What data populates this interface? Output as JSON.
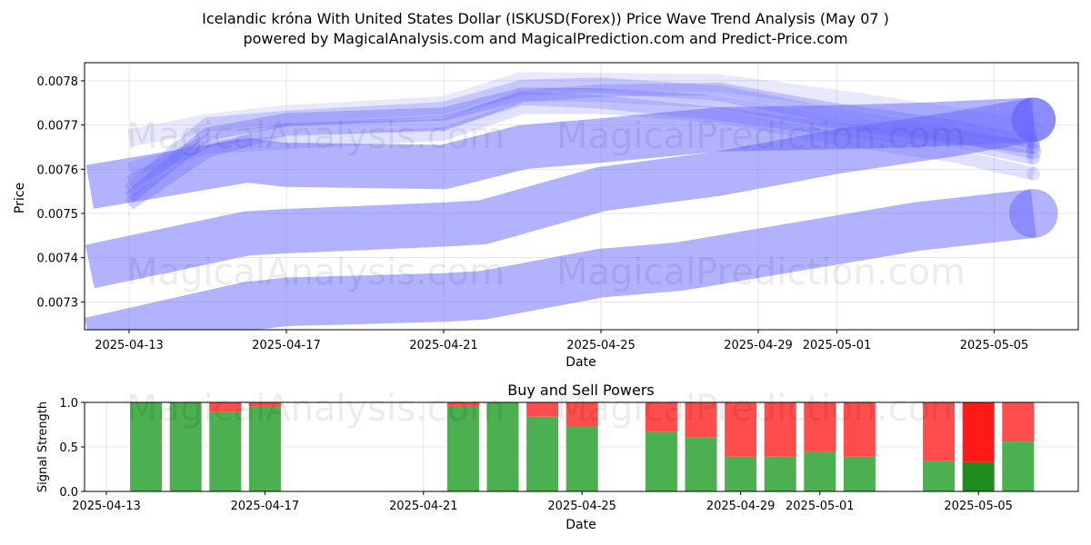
{
  "title_line1": "Icelandic króna With United States Dollar (ISKUSD(Forex)) Price Wave Trend Analysis (May 07 )",
  "title_line2": "powered by MagicalAnalysis.com and MagicalPrediction.com and Predict-Price.com",
  "watermarks": [
    "MagicalAnalysis.com",
    "MagicalPrediction.com"
  ],
  "colors": {
    "band": "#6666ff",
    "buy": "#4caf50",
    "sell": "#ff4d4d",
    "buy_dark": "#1e8c1e",
    "sell_bright": "#ff1a1a"
  },
  "chart_data": [
    {
      "type": "area",
      "name": "price-wave",
      "xlabel": "Date",
      "ylabel": "Price",
      "ylim": [
        0.007237,
        0.007841
      ],
      "grid": true,
      "x_ticks": [
        "2025-04-13",
        "2025-04-17",
        "2025-04-21",
        "2025-04-25",
        "2025-04-29",
        "2025-05-01",
        "2025-05-05"
      ],
      "y_ticks": [
        "0.0073",
        "0.0074",
        "0.0075",
        "0.0076",
        "0.0077",
        "0.0078"
      ],
      "series": [
        {
          "points": [
            [
              "2025-04-13",
              0.007535
            ],
            [
              "2025-04-15",
              0.00768
            ],
            [
              "2025-04-17",
              0.007712
            ],
            [
              "2025-04-21",
              0.007725
            ],
            [
              "2025-04-23",
              0.00777
            ],
            [
              "2025-04-25",
              0.007768
            ],
            [
              "2025-04-28",
              0.007752
            ],
            [
              "2025-05-01",
              0.007705
            ],
            [
              "2025-05-04",
              0.007672
            ],
            [
              "2025-05-06",
              0.00765
            ]
          ],
          "width": 3e-05,
          "opacity": 0.35
        },
        {
          "points": [
            [
              "2025-04-13",
              0.00755
            ],
            [
              "2025-04-15",
              0.0077
            ],
            [
              "2025-04-17",
              0.007715
            ],
            [
              "2025-04-21",
              0.007735
            ],
            [
              "2025-04-23",
              0.007785
            ],
            [
              "2025-04-25",
              0.00779
            ],
            [
              "2025-04-28",
              0.007772
            ],
            [
              "2025-05-01",
              0.00772
            ],
            [
              "2025-05-04",
              0.00768
            ],
            [
              "2025-05-06",
              0.00764
            ]
          ],
          "width": 3.5e-05,
          "opacity": 0.25
        },
        {
          "points": [
            [
              "2025-04-13",
              0.00757
            ],
            [
              "2025-04-15",
              0.007665
            ],
            [
              "2025-04-17",
              0.00769
            ],
            [
              "2025-04-21",
              0.007705
            ],
            [
              "2025-04-23",
              0.00776
            ],
            [
              "2025-04-25",
              0.007752
            ],
            [
              "2025-04-28",
              0.007725
            ],
            [
              "2025-05-01",
              0.00769
            ],
            [
              "2025-05-04",
              0.007662
            ],
            [
              "2025-05-06",
              0.007625
            ]
          ],
          "width": 3e-05,
          "opacity": 0.25
        },
        {
          "points": [
            [
              "2025-04-13",
              0.00752
            ],
            [
              "2025-04-15",
              0.00764
            ],
            [
              "2025-04-17",
              0.00769
            ],
            [
              "2025-04-21",
              0.0077
            ],
            [
              "2025-04-23",
              0.007765
            ],
            [
              "2025-04-25",
              0.007778
            ],
            [
              "2025-04-28",
              0.007782
            ],
            [
              "2025-05-01",
              0.007735
            ],
            [
              "2025-05-04",
              0.007698
            ],
            [
              "2025-05-06",
              0.00766
            ]
          ],
          "width": 2.8e-05,
          "opacity": 0.3
        },
        {
          "points": [
            [
              "2025-04-13",
              0.00767
            ],
            [
              "2025-04-15",
              0.007705
            ],
            [
              "2025-04-17",
              0.007725
            ],
            [
              "2025-04-21",
              0.007745
            ],
            [
              "2025-04-23",
              0.0078
            ],
            [
              "2025-04-25",
              0.007798
            ],
            [
              "2025-04-28",
              0.007795
            ],
            [
              "2025-05-01",
              0.00776
            ],
            [
              "2025-05-04",
              0.00772
            ],
            [
              "2025-05-06",
              0.00769
            ]
          ],
          "width": 4e-05,
          "opacity": 0.15
        },
        {
          "points": [
            [
              "2025-04-13",
              0.0076
            ],
            [
              "2025-04-15",
              0.00765
            ],
            [
              "2025-04-17",
              0.00766
            ],
            [
              "2025-04-21",
              0.00768
            ],
            [
              "2025-04-23",
              0.00774
            ],
            [
              "2025-04-25",
              0.00774
            ],
            [
              "2025-04-28",
              0.00772
            ],
            [
              "2025-05-01",
              0.00767
            ],
            [
              "2025-05-04",
              0.00763
            ],
            [
              "2025-05-06",
              0.00759
            ]
          ],
          "width": 3e-05,
          "opacity": 0.2
        },
        {
          "points": [
            [
              "2025-04-12",
              0.00756
            ],
            [
              "2025-04-16",
              0.00762
            ],
            [
              "2025-04-17",
              0.00761
            ],
            [
              "2025-04-21",
              0.007605
            ],
            [
              "2025-04-23",
              0.00765
            ],
            [
              "2025-04-25",
              0.007665
            ],
            [
              "2025-04-28",
              0.00769
            ],
            [
              "2025-05-01",
              0.007695
            ],
            [
              "2025-05-03",
              0.0077
            ],
            [
              "2025-05-06",
              0.007712
            ]
          ],
          "width": 0.0001,
          "opacity": 0.5
        },
        {
          "points": [
            [
              "2025-04-12",
              0.00738
            ],
            [
              "2025-04-16",
              0.007455
            ],
            [
              "2025-04-17",
              0.00746
            ],
            [
              "2025-04-21",
              0.007475
            ],
            [
              "2025-04-22",
              0.00748
            ],
            [
              "2025-04-25",
              0.007555
            ],
            [
              "2025-04-28",
              0.00759
            ],
            [
              "2025-05-01",
              0.00764
            ],
            [
              "2025-05-04",
              0.00768
            ],
            [
              "2025-05-06",
              0.007712
            ]
          ],
          "width": 0.0001,
          "opacity": 0.5
        },
        {
          "points": [
            [
              "2025-04-12",
              0.00721
            ],
            [
              "2025-04-16",
              0.00729
            ],
            [
              "2025-04-17",
              0.0073
            ],
            [
              "2025-04-21",
              0.00731
            ],
            [
              "2025-04-22",
              0.007315
            ],
            [
              "2025-04-25",
              0.007365
            ],
            [
              "2025-04-27",
              0.00738
            ],
            [
              "2025-05-01",
              0.00744
            ],
            [
              "2025-05-03",
              0.00747
            ],
            [
              "2025-05-06",
              0.0075
            ]
          ],
          "width": 0.00011,
          "opacity": 0.5
        }
      ]
    },
    {
      "type": "bar",
      "name": "buy-sell-powers",
      "title": "Buy and Sell Powers",
      "xlabel": "Date",
      "ylabel": "Signal Strength",
      "ylim": [
        0,
        1
      ],
      "x_ticks": [
        "2025-04-13",
        "2025-04-17",
        "2025-04-21",
        "2025-04-25",
        "2025-04-29",
        "2025-05-01",
        "2025-05-05"
      ],
      "y_ticks": [
        "0.0",
        "0.5",
        "1.0"
      ],
      "categories": [
        "2025-04-14",
        "2025-04-15",
        "2025-04-16",
        "2025-04-17",
        "2025-04-22",
        "2025-04-23",
        "2025-04-24",
        "2025-04-25",
        "2025-04-27",
        "2025-04-28",
        "2025-04-29",
        "2025-04-30",
        "2025-05-01",
        "2025-05-02",
        "2025-05-04",
        "2025-05-05",
        "2025-05-06"
      ],
      "series": [
        {
          "name": "buy",
          "values": [
            1.0,
            1.0,
            0.89,
            0.95,
            0.96,
            1.0,
            0.84,
            0.73,
            0.67,
            0.61,
            0.39,
            0.39,
            0.45,
            0.39,
            0.34,
            0.33,
            0.56
          ]
        },
        {
          "name": "sell",
          "values": [
            0.0,
            0.0,
            0.11,
            0.05,
            0.04,
            0.0,
            0.16,
            0.27,
            0.33,
            0.39,
            0.61,
            0.61,
            0.55,
            0.61,
            0.66,
            0.67,
            0.44
          ]
        }
      ],
      "highlight_category": "2025-05-05"
    }
  ]
}
